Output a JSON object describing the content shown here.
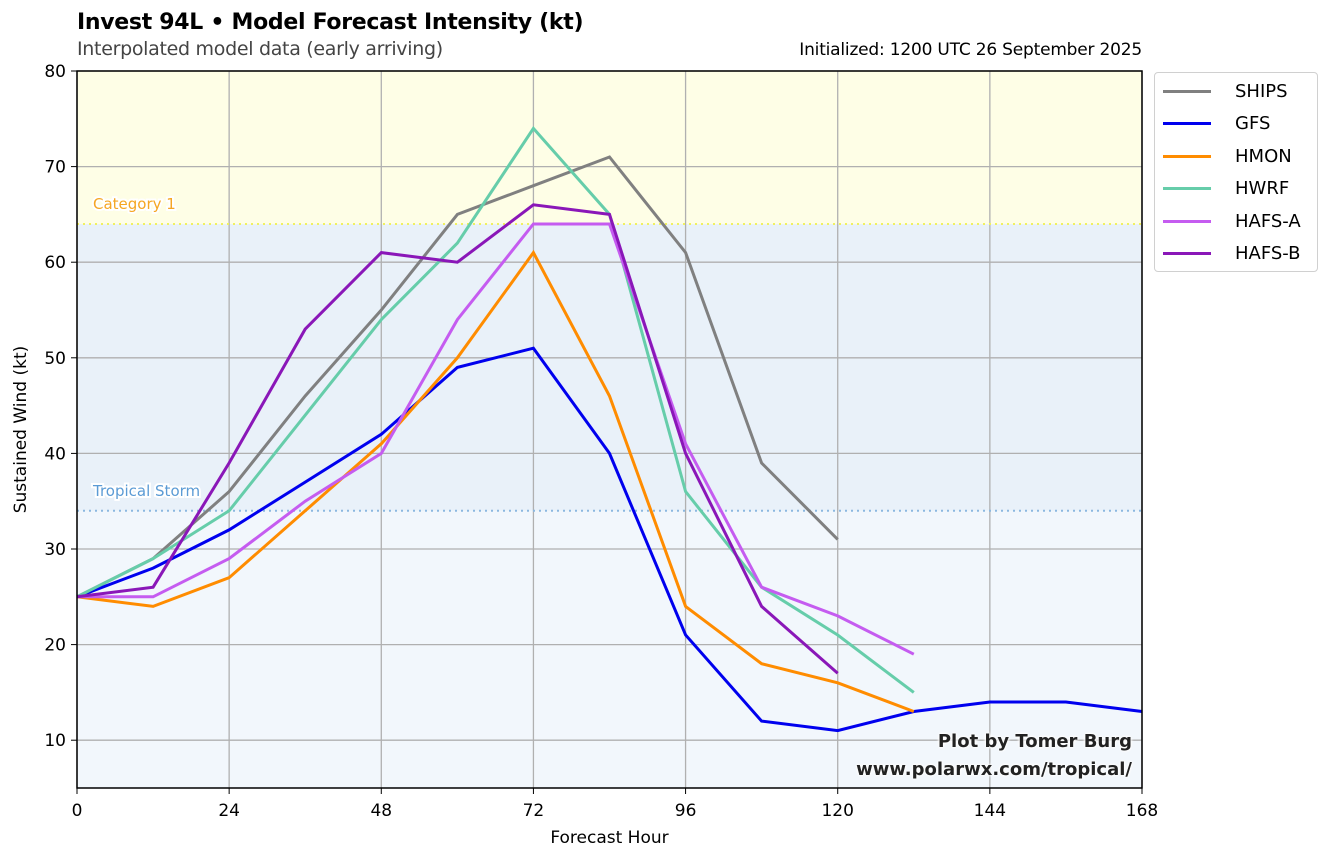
{
  "header": {
    "title": "Invest 94L • Model Forecast Intensity (kt)",
    "subtitle": "Interpolated model data (early arriving)",
    "initialized": "Initialized: 1200 UTC 26 September 2025"
  },
  "credit": {
    "line1": "Plot by Tomer Burg",
    "line2": "www.polarwx.com/tropical/"
  },
  "chart_data": {
    "type": "line",
    "title": "Invest 94L • Model Forecast Intensity (kt)",
    "subtitle": "Interpolated model data (early arriving)",
    "xlabel": "Forecast Hour",
    "ylabel": "Sustained Wind (kt)",
    "xlim": [
      0,
      168
    ],
    "ylim": [
      5,
      80
    ],
    "xticks": [
      0,
      24,
      48,
      72,
      96,
      120,
      144,
      168
    ],
    "yticks": [
      10,
      20,
      30,
      40,
      50,
      60,
      70,
      80
    ],
    "grid": true,
    "legend_position": "outside-top-right",
    "thresholds": [
      {
        "label": "Tropical Storm",
        "value": 34,
        "color": "#5b9bd5",
        "band_color": "#e9f1f9"
      },
      {
        "label": "Category 1",
        "value": 64,
        "color": "#f5a623",
        "line_color": "#f0f060",
        "band_color": "#fefee6"
      }
    ],
    "below_ts_band_color": "#f2f7fc",
    "series": [
      {
        "name": "SHIPS",
        "color": "#808080",
        "x": [
          0,
          12,
          24,
          36,
          48,
          60,
          72,
          84,
          96,
          108,
          120
        ],
        "values": [
          25,
          29,
          36,
          46,
          55,
          65,
          68,
          71,
          61,
          39,
          31
        ]
      },
      {
        "name": "GFS",
        "color": "#0000ee",
        "x": [
          0,
          12,
          24,
          36,
          48,
          60,
          72,
          84,
          96,
          108,
          120,
          132,
          144,
          156,
          168
        ],
        "values": [
          25,
          28,
          32,
          37,
          42,
          49,
          51,
          40,
          21,
          12,
          11,
          13,
          14,
          14,
          13
        ]
      },
      {
        "name": "HMON",
        "color": "#ff8c00",
        "x": [
          0,
          12,
          24,
          36,
          48,
          60,
          72,
          84,
          96,
          108,
          120,
          132
        ],
        "values": [
          25,
          24,
          27,
          34,
          41,
          50,
          61,
          46,
          24,
          18,
          16,
          13
        ]
      },
      {
        "name": "HWRF",
        "color": "#66cdaa",
        "x": [
          0,
          12,
          24,
          36,
          48,
          60,
          72,
          84,
          96,
          108,
          120,
          132
        ],
        "values": [
          25,
          29,
          34,
          44,
          54,
          62,
          74,
          65,
          36,
          26,
          21,
          15
        ]
      },
      {
        "name": "HAFS-A",
        "color": "#c55cf0",
        "x": [
          0,
          12,
          24,
          36,
          48,
          60,
          72,
          84,
          96,
          108,
          120,
          132
        ],
        "values": [
          25,
          25,
          29,
          35,
          40,
          54,
          64,
          64,
          41,
          26,
          23,
          19
        ]
      },
      {
        "name": "HAFS-B",
        "color": "#8a17b8",
        "x": [
          0,
          12,
          24,
          36,
          48,
          60,
          72,
          84,
          96,
          108,
          120
        ],
        "values": [
          25,
          26,
          39,
          53,
          61,
          60,
          66,
          65,
          40,
          24,
          17
        ]
      }
    ]
  }
}
